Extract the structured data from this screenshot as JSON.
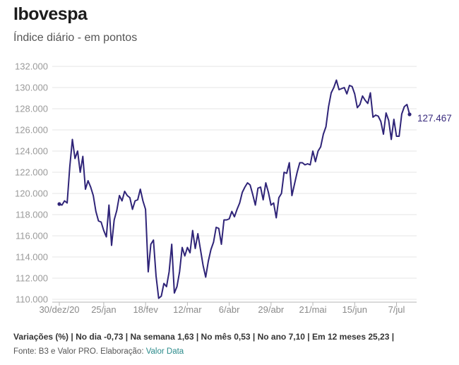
{
  "title": "Ibovespa",
  "subtitle": "Índice diário - em pontos",
  "footer": {
    "variations": "Variações (%) | No dia -0,73 | Na semana 1,63 | No mês 0,53 | No ano 7,10 | Em 12 meses 25,23 |",
    "source_prefix": "Fonte: B3 e Valor PRO. Elaboração: ",
    "source_link": "Valor Data"
  },
  "colors": {
    "line": "#2f2478",
    "grid": "#e6e6e6",
    "axis": "#9a9a9a"
  },
  "chart_data": {
    "type": "line",
    "title": "Ibovespa",
    "subtitle": "Índice diário - em pontos",
    "xlabel": "",
    "ylabel": "",
    "ylim": [
      110000,
      132000
    ],
    "yticks": [
      110000,
      112000,
      114000,
      116000,
      118000,
      120000,
      122000,
      124000,
      126000,
      128000,
      130000,
      132000
    ],
    "ytick_labels": [
      "110.000",
      "112.000",
      "114.000",
      "116.000",
      "118.000",
      "120.000",
      "122.000",
      "124.000",
      "126.000",
      "128.000",
      "130.000",
      "132.000"
    ],
    "xtick_labels": [
      "30/dez/20",
      "25/jan",
      "18/fev",
      "12/mar",
      "6/abr",
      "29/abr",
      "21/mai",
      "15/jun",
      "7/jul"
    ],
    "xtick_index": [
      0,
      17,
      33,
      49,
      65,
      81,
      97,
      113,
      129
    ],
    "grid": true,
    "end_label": "127.467",
    "series": [
      {
        "values": [
          119000,
          118900,
          119300,
          119100,
          122500,
          125100,
          123300,
          124000,
          122000,
          123500,
          120400,
          121200,
          120600,
          119800,
          118300,
          117400,
          117300,
          116500,
          115900,
          118900,
          115100,
          117500,
          118400,
          119800,
          119300,
          120200,
          119800,
          119600,
          118500,
          119300,
          119400,
          120400,
          119300,
          118500,
          112600,
          115200,
          115600,
          112200,
          110100,
          110300,
          111500,
          111200,
          112600,
          115200,
          110600,
          111200,
          112600,
          114900,
          114100,
          114900,
          114400,
          116500,
          114800,
          116200,
          114700,
          113200,
          112100,
          113600,
          114700,
          115400,
          116800,
          116700,
          115200,
          117500,
          117500,
          117600,
          118300,
          117800,
          118500,
          119100,
          120100,
          120600,
          121000,
          120800,
          119900,
          118900,
          120500,
          120600,
          119400,
          121000,
          120100,
          118900,
          119100,
          117700,
          119600,
          120000,
          122000,
          121900,
          122900,
          119800,
          120900,
          122000,
          122900,
          122900,
          122700,
          122800,
          122700,
          124000,
          123000,
          124000,
          124400,
          125600,
          126300,
          128200,
          129500,
          130000,
          130700,
          129800,
          129900,
          130000,
          129400,
          130200,
          130100,
          129400,
          128100,
          128400,
          129200,
          128800,
          128500,
          129500,
          127200,
          127400,
          127300,
          126800,
          125600,
          127600,
          126900,
          125100,
          127000,
          125400,
          125400,
          127500,
          128200,
          128400,
          127467
        ]
      }
    ]
  }
}
